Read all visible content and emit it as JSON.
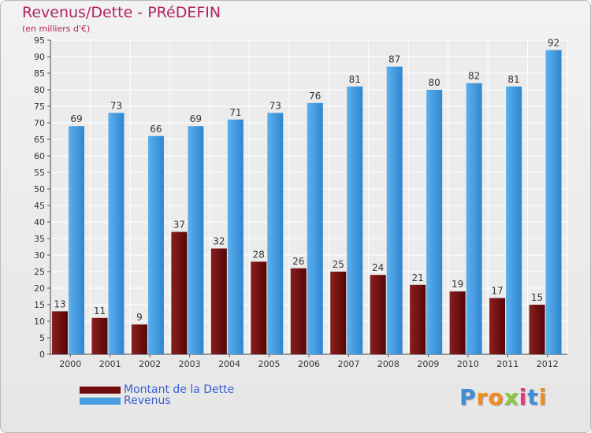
{
  "header": {
    "title": "Revenus/Dette - PRéDEFIN",
    "subtitle": "(en milliers d'€)"
  },
  "legend": {
    "items": [
      {
        "label": "Montant de la Dette",
        "color": "#6e0b0b"
      },
      {
        "label": "Revenus",
        "color": "#4a9fe0"
      }
    ]
  },
  "logo": {
    "letters": [
      {
        "ch": "P",
        "color": "#3f8fd6"
      },
      {
        "ch": "r",
        "color": "#f28a1d"
      },
      {
        "ch": "o",
        "color": "#f28a1d"
      },
      {
        "ch": "x",
        "color": "#8cc63f"
      },
      {
        "ch": "i",
        "color": "#e23a7a"
      },
      {
        "ch": "t",
        "color": "#3f8fd6"
      },
      {
        "ch": "i",
        "color": "#f28a1d"
      }
    ]
  },
  "chart_data": {
    "type": "bar",
    "categories": [
      "2000",
      "2001",
      "2002",
      "2003",
      "2004",
      "2005",
      "2006",
      "2007",
      "2008",
      "2009",
      "2010",
      "2011",
      "2012"
    ],
    "series": [
      {
        "name": "Montant de la Dette",
        "color": "#7a1515",
        "values": [
          13,
          11,
          9,
          37,
          32,
          28,
          26,
          25,
          24,
          21,
          19,
          17,
          15
        ]
      },
      {
        "name": "Revenus",
        "color": "#4a9fe0",
        "values": [
          69,
          73,
          66,
          69,
          71,
          73,
          76,
          81,
          87,
          80,
          82,
          81,
          92
        ]
      }
    ],
    "ylim": [
      0,
      95
    ],
    "yticks": [
      0,
      5,
      10,
      15,
      20,
      25,
      30,
      35,
      40,
      45,
      50,
      55,
      60,
      65,
      70,
      75,
      80,
      85,
      90,
      95
    ],
    "grid": true,
    "legend_position": "bottom-left"
  }
}
